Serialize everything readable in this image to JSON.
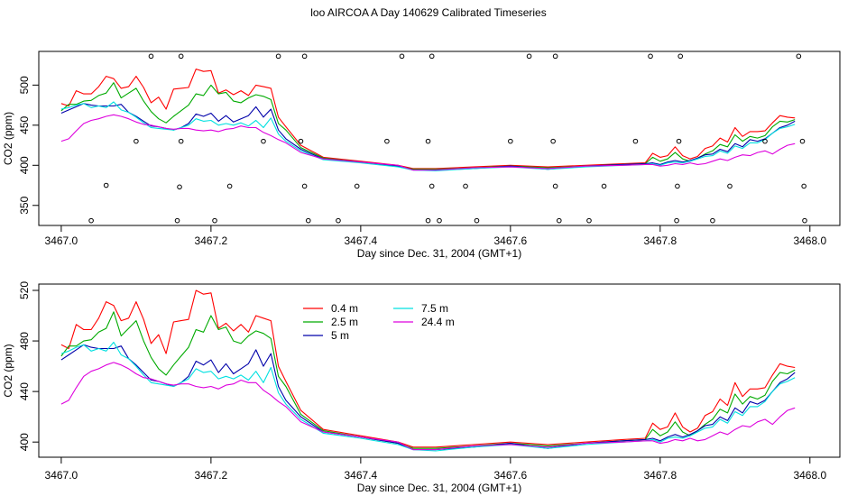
{
  "page_title": "loo AIRCOA A  Day 140629  Calibrated Timeseries",
  "chart_data": [
    {
      "type": "line+scatter",
      "xlabel": "Day since Dec. 31, 2004 (GMT+1)",
      "ylabel": "CO2 (ppm)",
      "xlim": [
        3466.97,
        3468.04
      ],
      "ylim": [
        325,
        542
      ],
      "xticks": [
        "3467.0",
        "3467.2",
        "3467.4",
        "3467.6",
        "3467.8",
        "3468.0"
      ],
      "yticks": [
        "350",
        "400",
        "450",
        "500"
      ],
      "series": [
        {
          "color": "#ff0000",
          "x": [
            3467.0,
            3467.01,
            3467.02,
            3467.03,
            3467.04,
            3467.05,
            3467.06,
            3467.07,
            3467.08,
            3467.09,
            3467.1,
            3467.11,
            3467.12,
            3467.13,
            3467.14,
            3467.15,
            3467.16,
            3467.17,
            3467.18,
            3467.19,
            3467.2,
            3467.21,
            3467.22,
            3467.23,
            3467.24,
            3467.25,
            3467.26,
            3467.27,
            3467.28,
            3467.29,
            3467.3,
            3467.32,
            3467.35,
            3467.4,
            3467.45,
            3467.47,
            3467.5,
            3467.55,
            3467.6,
            3467.65,
            3467.7,
            3467.75,
            3467.78,
            3467.79,
            3467.8,
            3467.81,
            3467.82,
            3467.83,
            3467.84,
            3467.85,
            3467.86,
            3467.87,
            3467.88,
            3467.89,
            3467.9,
            3467.91,
            3467.92,
            3467.93,
            3467.94,
            3467.95,
            3467.96,
            3467.97,
            3467.98
          ],
          "y": [
            477,
            474,
            493,
            489,
            489,
            498,
            511,
            508,
            496,
            498,
            511,
            497,
            478,
            485,
            470,
            495,
            496,
            497,
            520,
            517,
            518,
            490,
            494,
            488,
            493,
            487,
            500,
            498,
            496,
            460,
            448,
            425,
            410,
            405,
            400,
            396,
            396,
            398,
            400,
            398,
            400,
            402,
            403,
            415,
            410,
            412,
            423,
            412,
            408,
            411,
            421,
            424,
            434,
            429,
            447,
            436,
            442,
            442,
            443,
            453,
            462,
            460,
            459
          ]
        },
        {
          "color": "#00aa00",
          "x": [
            3467.0,
            3467.01,
            3467.02,
            3467.03,
            3467.04,
            3467.05,
            3467.06,
            3467.07,
            3467.08,
            3467.09,
            3467.1,
            3467.11,
            3467.12,
            3467.13,
            3467.14,
            3467.15,
            3467.16,
            3467.17,
            3467.18,
            3467.19,
            3467.2,
            3467.21,
            3467.22,
            3467.23,
            3467.24,
            3467.25,
            3467.26,
            3467.27,
            3467.28,
            3467.29,
            3467.3,
            3467.32,
            3467.35,
            3467.4,
            3467.45,
            3467.47,
            3467.5,
            3467.55,
            3467.6,
            3467.65,
            3467.7,
            3467.75,
            3467.78,
            3467.79,
            3467.8,
            3467.81,
            3467.82,
            3467.83,
            3467.84,
            3467.85,
            3467.86,
            3467.87,
            3467.88,
            3467.89,
            3467.9,
            3467.91,
            3467.92,
            3467.93,
            3467.94,
            3467.95,
            3467.96,
            3467.97,
            3467.98
          ],
          "y": [
            468,
            476,
            476,
            480,
            481,
            487,
            490,
            503,
            484,
            490,
            496,
            480,
            467,
            458,
            453,
            461,
            468,
            475,
            489,
            487,
            500,
            489,
            491,
            480,
            478,
            484,
            488,
            486,
            482,
            452,
            444,
            422,
            409,
            404,
            399,
            395,
            395,
            397,
            399,
            397,
            399,
            401,
            402,
            410,
            405,
            408,
            416,
            408,
            405,
            409,
            414,
            418,
            426,
            423,
            438,
            430,
            436,
            434,
            437,
            448,
            455,
            454,
            457
          ]
        },
        {
          "color": "#0000aa",
          "x": [
            3467.0,
            3467.01,
            3467.02,
            3467.03,
            3467.04,
            3467.05,
            3467.06,
            3467.07,
            3467.08,
            3467.09,
            3467.1,
            3467.11,
            3467.12,
            3467.13,
            3467.14,
            3467.15,
            3467.16,
            3467.17,
            3467.18,
            3467.19,
            3467.2,
            3467.21,
            3467.22,
            3467.23,
            3467.24,
            3467.25,
            3467.26,
            3467.27,
            3467.28,
            3467.29,
            3467.3,
            3467.32,
            3467.35,
            3467.4,
            3467.45,
            3467.47,
            3467.5,
            3467.55,
            3467.6,
            3467.65,
            3467.7,
            3467.75,
            3467.78,
            3467.79,
            3467.8,
            3467.81,
            3467.82,
            3467.83,
            3467.84,
            3467.85,
            3467.86,
            3467.87,
            3467.88,
            3467.89,
            3467.9,
            3467.91,
            3467.92,
            3467.93,
            3467.94,
            3467.95,
            3467.96,
            3467.97,
            3467.98
          ],
          "y": [
            465,
            469,
            473,
            477,
            475,
            474,
            474,
            474,
            476,
            466,
            461,
            455,
            449,
            448,
            446,
            444,
            447,
            452,
            464,
            461,
            465,
            455,
            462,
            454,
            458,
            462,
            473,
            460,
            470,
            444,
            433,
            420,
            408,
            404,
            399,
            394,
            394,
            396,
            399,
            395,
            399,
            401,
            402,
            403,
            401,
            404,
            406,
            404,
            406,
            409,
            413,
            414,
            420,
            417,
            427,
            423,
            432,
            430,
            433,
            440,
            447,
            450,
            455
          ]
        },
        {
          "color": "#00e0e0",
          "x": [
            3467.0,
            3467.01,
            3467.02,
            3467.03,
            3467.04,
            3467.05,
            3467.06,
            3467.07,
            3467.08,
            3467.09,
            3467.1,
            3467.11,
            3467.12,
            3467.13,
            3467.14,
            3467.15,
            3467.16,
            3467.17,
            3467.18,
            3467.19,
            3467.2,
            3467.21,
            3467.22,
            3467.23,
            3467.24,
            3467.25,
            3467.26,
            3467.27,
            3467.28,
            3467.29,
            3467.3,
            3467.32,
            3467.35,
            3467.4,
            3467.45,
            3467.47,
            3467.5,
            3467.55,
            3467.6,
            3467.65,
            3467.7,
            3467.75,
            3467.78,
            3467.79,
            3467.8,
            3467.81,
            3467.82,
            3467.83,
            3467.84,
            3467.85,
            3467.86,
            3467.87,
            3467.88,
            3467.89,
            3467.9,
            3467.91,
            3467.92,
            3467.93,
            3467.94,
            3467.95,
            3467.96,
            3467.97,
            3467.98
          ],
          "y": [
            470,
            472,
            475,
            477,
            472,
            474,
            472,
            479,
            469,
            466,
            460,
            453,
            447,
            446,
            445,
            444,
            447,
            450,
            458,
            455,
            456,
            450,
            452,
            450,
            453,
            449,
            456,
            447,
            459,
            439,
            430,
            418,
            407,
            403,
            398,
            394,
            393,
            396,
            398,
            395,
            398,
            400,
            401,
            402,
            400,
            403,
            404,
            403,
            405,
            408,
            411,
            412,
            418,
            415,
            424,
            421,
            428,
            428,
            432,
            440,
            446,
            448,
            451
          ]
        },
        {
          "color": "#dd00dd",
          "x": [
            3467.0,
            3467.01,
            3467.02,
            3467.03,
            3467.04,
            3467.05,
            3467.06,
            3467.07,
            3467.08,
            3467.09,
            3467.1,
            3467.11,
            3467.12,
            3467.13,
            3467.14,
            3467.15,
            3467.16,
            3467.17,
            3467.18,
            3467.19,
            3467.2,
            3467.21,
            3467.22,
            3467.23,
            3467.24,
            3467.25,
            3467.26,
            3467.27,
            3467.28,
            3467.29,
            3467.3,
            3467.32,
            3467.35,
            3467.4,
            3467.45,
            3467.47,
            3467.5,
            3467.55,
            3467.6,
            3467.65,
            3467.7,
            3467.75,
            3467.78,
            3467.79,
            3467.8,
            3467.81,
            3467.82,
            3467.83,
            3467.84,
            3467.85,
            3467.86,
            3467.87,
            3467.88,
            3467.89,
            3467.9,
            3467.91,
            3467.92,
            3467.93,
            3467.94,
            3467.95,
            3467.96,
            3467.97,
            3467.98
          ],
          "y": [
            430,
            433,
            443,
            452,
            456,
            458,
            461,
            463,
            461,
            458,
            454,
            451,
            450,
            448,
            446,
            445,
            446,
            446,
            444,
            443,
            444,
            442,
            445,
            446,
            449,
            447,
            447,
            441,
            437,
            432,
            428,
            416,
            408,
            404,
            400,
            394,
            394,
            397,
            398,
            396,
            399,
            400,
            401,
            401,
            399,
            400,
            402,
            401,
            403,
            401,
            402,
            405,
            408,
            406,
            410,
            413,
            412,
            416,
            418,
            414,
            420,
            425,
            427
          ]
        }
      ],
      "points": {
        "color": "#000000",
        "x": [
          3467.04,
          3467.06,
          3467.1,
          3467.12,
          3467.155,
          3467.158,
          3467.16,
          3467.16,
          3467.205,
          3467.225,
          3467.27,
          3467.29,
          3467.32,
          3467.325,
          3467.325,
          3467.33,
          3467.37,
          3467.395,
          3467.435,
          3467.455,
          3467.49,
          3467.49,
          3467.495,
          3467.495,
          3467.505,
          3467.54,
          3467.555,
          3467.6,
          3467.625,
          3467.657,
          3467.66,
          3467.66,
          3467.665,
          3467.705,
          3467.725,
          3467.767,
          3467.787,
          3467.822,
          3467.823,
          3467.825,
          3467.827,
          3467.87,
          3467.893,
          3467.94,
          3467.985,
          3467.99,
          3467.992,
          3467.993
        ],
        "y": [
          331,
          375,
          430,
          536,
          331,
          373,
          430,
          536,
          331,
          374,
          430,
          536,
          430,
          536,
          374,
          331,
          331,
          374,
          430,
          536,
          331,
          430,
          536,
          374,
          331,
          374,
          331,
          430,
          536,
          430,
          536,
          374,
          331,
          331,
          374,
          430,
          536,
          331,
          374,
          430,
          536,
          331,
          374,
          430,
          536,
          430,
          374,
          331
        ]
      }
    },
    {
      "type": "line",
      "xlabel": "Day since Dec. 31, 2004 (GMT+1)",
      "ylabel": "CO2 (ppm)",
      "xlim": [
        3466.97,
        3468.04
      ],
      "ylim": [
        388,
        525
      ],
      "xticks": [
        "3467.0",
        "3467.2",
        "3467.4",
        "3467.6",
        "3467.8",
        "3468.0"
      ],
      "yticks": [
        "400",
        "440",
        "480",
        "520"
      ],
      "legend_position": "top-left",
      "series_from_panel": 0,
      "legend": [
        {
          "name": "0.4 m",
          "color": "#ff0000"
        },
        {
          "name": "2.5 m",
          "color": "#00aa00"
        },
        {
          "name": "5 m",
          "color": "#0000aa"
        },
        {
          "name": "7.5 m",
          "color": "#00e0e0"
        },
        {
          "name": "24.4 m",
          "color": "#dd00dd"
        }
      ]
    }
  ]
}
